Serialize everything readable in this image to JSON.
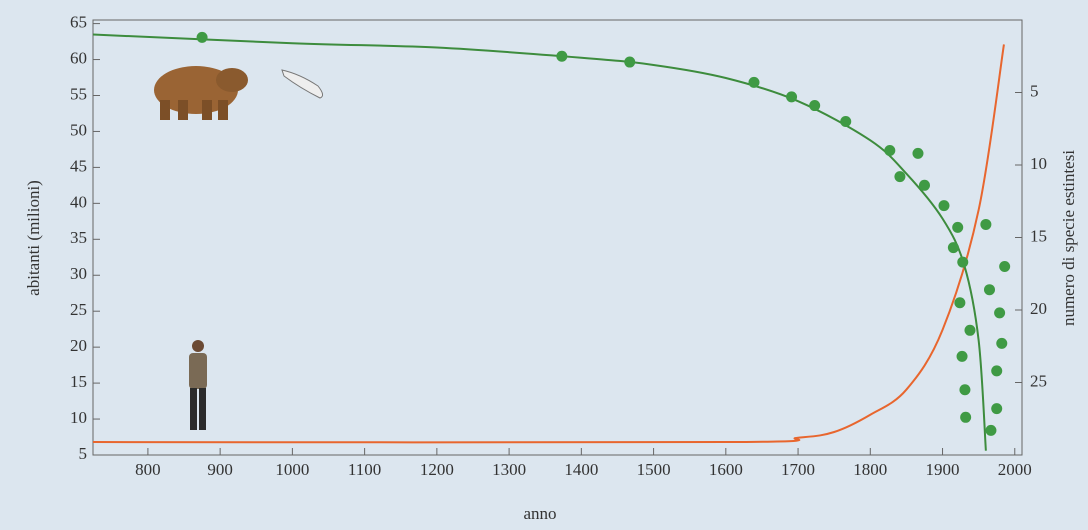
{
  "chart_data": {
    "type": "line",
    "x_label": "anno",
    "y_label": "abitanti (milioni)",
    "y2_label": "numero di specie estintesi",
    "xlim": [
      724,
      2010
    ],
    "xticks": [
      800,
      900,
      1000,
      1100,
      1200,
      1300,
      1400,
      1500,
      1600,
      1700,
      1800,
      1900,
      2000
    ],
    "ylim": [
      5,
      65.5
    ],
    "yticks": [
      5,
      10,
      15,
      20,
      25,
      30,
      35,
      40,
      45,
      50,
      55,
      60,
      65
    ],
    "y2lim": [
      0,
      30
    ],
    "y2ticks": [
      5,
      10,
      15,
      20,
      25
    ],
    "y2_inverted": true,
    "series": [
      {
        "type": "line",
        "color": "#e8662e",
        "x": [
          724,
          1600,
          1700,
          1750,
          1800,
          1850,
          1900,
          1950,
          1985
        ],
        "values": [
          6.8,
          6.8,
          7.4,
          8.2,
          10.6,
          14.1,
          22.4,
          39.1,
          62.1
        ]
      },
      {
        "type": "line",
        "color": "#3d8c3d",
        "axis": "y2",
        "x": [
          724,
          1000,
          1200,
          1400,
          1500,
          1600,
          1700,
          1800,
          1850,
          1900,
          1930,
          1950,
          1960
        ],
        "values": [
          1.0,
          1.6,
          1.9,
          2.6,
          3.1,
          4.0,
          5.6,
          8.3,
          10.6,
          13.7,
          16.9,
          22.1,
          29.7
        ]
      },
      {
        "type": "scatter",
        "color": "#3f9a44",
        "axis": "y2",
        "x": [
          875,
          1373,
          1467,
          1639,
          1691,
          1723,
          1766,
          1827,
          1866,
          1841,
          1875,
          1902,
          1921,
          1960,
          1915,
          1928,
          1986,
          1965,
          1924,
          1979,
          1938,
          1982,
          1927,
          1975,
          1931,
          1975,
          1932,
          1967
        ],
        "values": [
          1.2,
          2.5,
          2.9,
          4.3,
          5.3,
          5.9,
          7.0,
          9.0,
          9.2,
          10.8,
          11.4,
          12.8,
          14.3,
          14.1,
          15.7,
          16.7,
          17.0,
          18.6,
          19.5,
          20.2,
          21.4,
          22.3,
          23.2,
          24.2,
          25.5,
          26.8,
          27.4,
          28.3
        ]
      }
    ]
  }
}
